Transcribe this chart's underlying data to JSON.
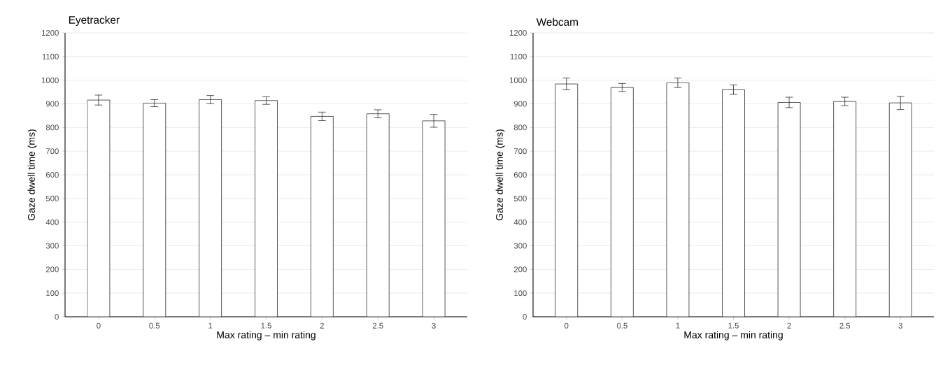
{
  "chart_data": [
    {
      "type": "bar",
      "title": "Eyetracker",
      "xlabel": "Max rating – min rating",
      "ylabel": "Gaze dwell time (ms)",
      "categories": [
        "0",
        "0.5",
        "1",
        "1.5",
        "2",
        "2.5",
        "3"
      ],
      "values": [
        916,
        903,
        918,
        914,
        847,
        858,
        828
      ],
      "errors": [
        21,
        15,
        17,
        16,
        18,
        17,
        27
      ],
      "color": "#ffffff",
      "ylim": [
        0,
        1200
      ],
      "yticks": [
        0,
        100,
        200,
        300,
        400,
        500,
        600,
        700,
        800,
        900,
        1000,
        1100,
        1200
      ],
      "grid": "y"
    },
    {
      "type": "bar",
      "title": "Webcam",
      "xlabel": "Max rating – min rating",
      "ylabel": "Gaze dwell time (ms)",
      "categories": [
        "0",
        "0.5",
        "1",
        "1.5",
        "2",
        "2.5",
        "3"
      ],
      "values": [
        984,
        969,
        989,
        960,
        906,
        910,
        904
      ],
      "errors": [
        25,
        17,
        20,
        20,
        22,
        18,
        28
      ],
      "color": "#ffffff",
      "ylim": [
        0,
        1200
      ],
      "yticks": [
        0,
        100,
        200,
        300,
        400,
        500,
        600,
        700,
        800,
        900,
        1000,
        1100,
        1200
      ],
      "grid": "y"
    }
  ]
}
